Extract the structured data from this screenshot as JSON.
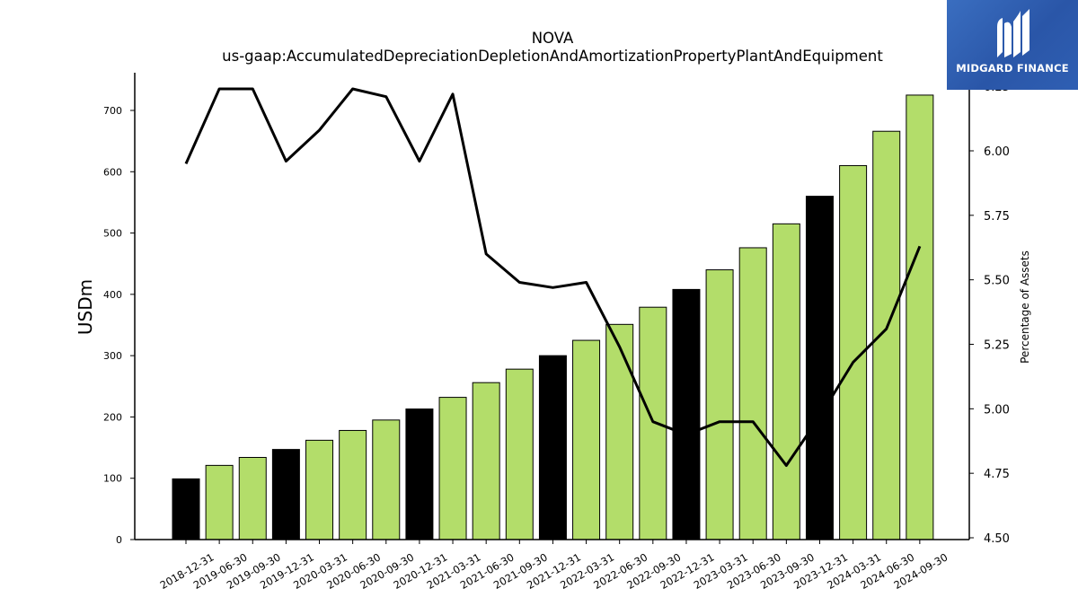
{
  "chart_data": {
    "type": "bar",
    "title": "NOVA",
    "subtitle": "us-gaap:AccumulatedDepreciationDepletionAndAmortizationPropertyPlantAndEquipment",
    "ylabel": "USDm",
    "y2label": "Percentage of Assets",
    "ylim": [
      0,
      760
    ],
    "y2lim": [
      4.5,
      6.25
    ],
    "yticks": [
      "0",
      "100",
      "200",
      "300",
      "400",
      "500",
      "600",
      "700"
    ],
    "y2ticks": [
      "4.50",
      "4.75",
      "5.00",
      "5.25",
      "5.50",
      "5.75",
      "6.00",
      "6.25"
    ],
    "categories": [
      "2018-12-31",
      "2019-06-30",
      "2019-09-30",
      "2019-12-31",
      "2020-03-31",
      "2020-06-30",
      "2020-09-30",
      "2020-12-31",
      "2021-03-31",
      "2021-06-30",
      "2021-09-30",
      "2021-12-31",
      "2022-03-31",
      "2022-06-30",
      "2022-09-30",
      "2022-12-31",
      "2023-03-31",
      "2023-06-30",
      "2023-09-30",
      "2023-12-31",
      "2024-03-31",
      "2024-06-30",
      "2024-09-30"
    ],
    "values": [
      99,
      121,
      134,
      147,
      162,
      178,
      195,
      213,
      232,
      256,
      278,
      300,
      325,
      351,
      379,
      408,
      440,
      476,
      515,
      560,
      610,
      666,
      725
    ],
    "bar_colors": [
      "#000000",
      "#b3dd6a",
      "#b3dd6a",
      "#000000",
      "#b3dd6a",
      "#b3dd6a",
      "#b3dd6a",
      "#000000",
      "#b3dd6a",
      "#b3dd6a",
      "#b3dd6a",
      "#000000",
      "#b3dd6a",
      "#b3dd6a",
      "#b3dd6a",
      "#000000",
      "#b3dd6a",
      "#b3dd6a",
      "#b3dd6a",
      "#000000",
      "#b3dd6a",
      "#b3dd6a",
      "#b3dd6a"
    ],
    "line_values": [
      5.95,
      6.24,
      6.24,
      5.96,
      6.08,
      6.24,
      6.21,
      5.96,
      6.22,
      5.6,
      5.49,
      5.47,
      5.49,
      5.24,
      4.95,
      4.9,
      4.95,
      4.95,
      4.78,
      4.97,
      5.18,
      5.31,
      5.63
    ],
    "line_color": "#000000",
    "grid": false
  },
  "logo": {
    "text": "MIDGARD FINANCE",
    "color": "#2f5fb3"
  }
}
